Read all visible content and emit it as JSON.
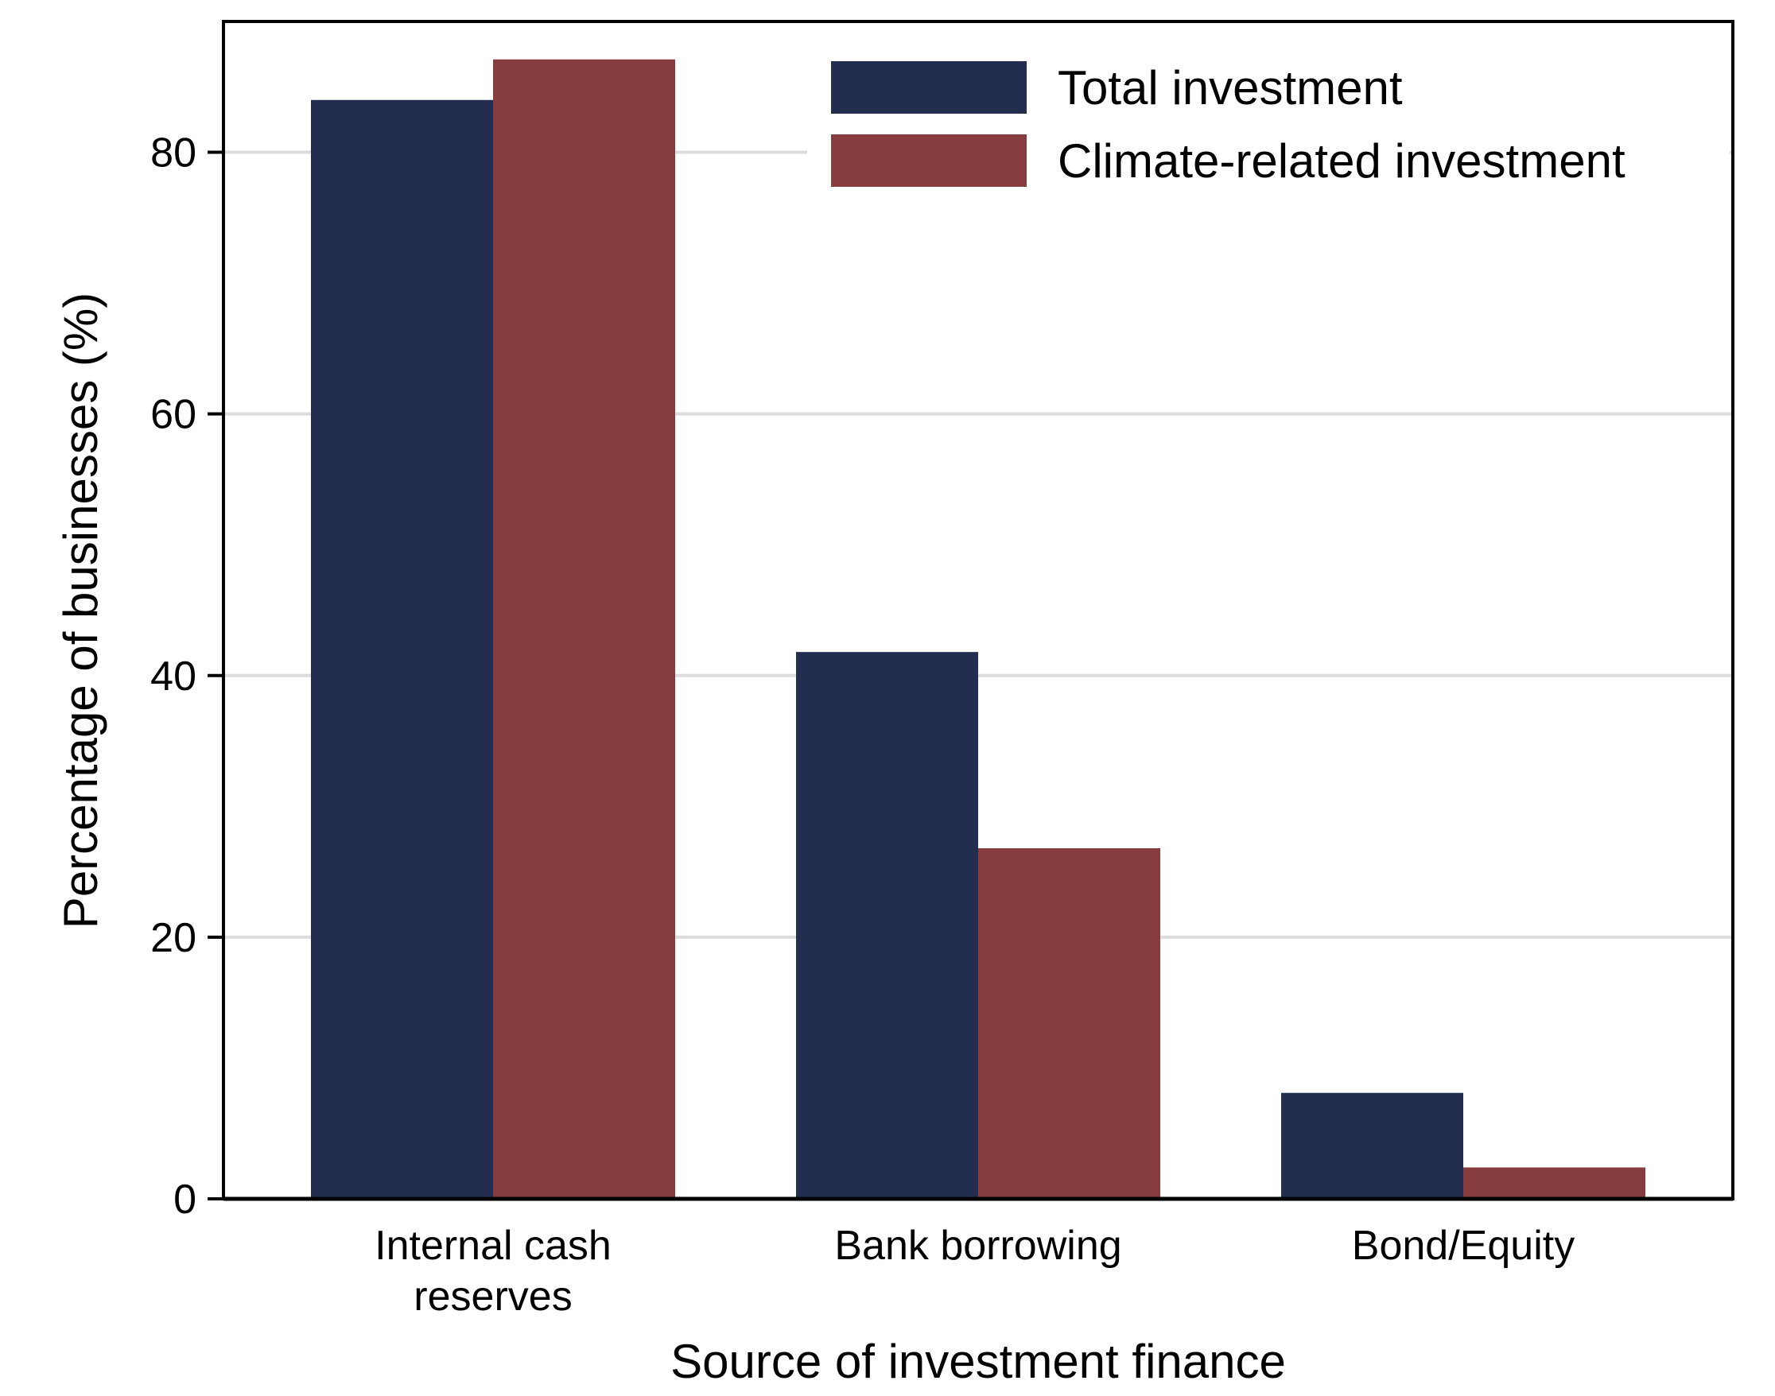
{
  "chart_data": {
    "type": "bar",
    "title": "",
    "xlabel": "Source of investment finance",
    "ylabel": "Percentage of businesses (%)",
    "ylim": [
      0,
      90
    ],
    "yticks": [
      0,
      20,
      40,
      60,
      80
    ],
    "ytick_labels": [
      "0",
      "20",
      "40",
      "60",
      "80"
    ],
    "grid": true,
    "legend_position": "top-right",
    "categories": [
      [
        "Internal cash",
        "reserves"
      ],
      [
        "Bank borrowing"
      ],
      [
        "Bond/Equity"
      ]
    ],
    "series": [
      {
        "name": "Total investment",
        "color": "#222d50",
        "values": [
          84,
          41.8,
          8.1
        ]
      },
      {
        "name": "Climate-related investment",
        "color": "#873c40",
        "values": [
          87.1,
          26.8,
          2.4
        ]
      }
    ]
  }
}
